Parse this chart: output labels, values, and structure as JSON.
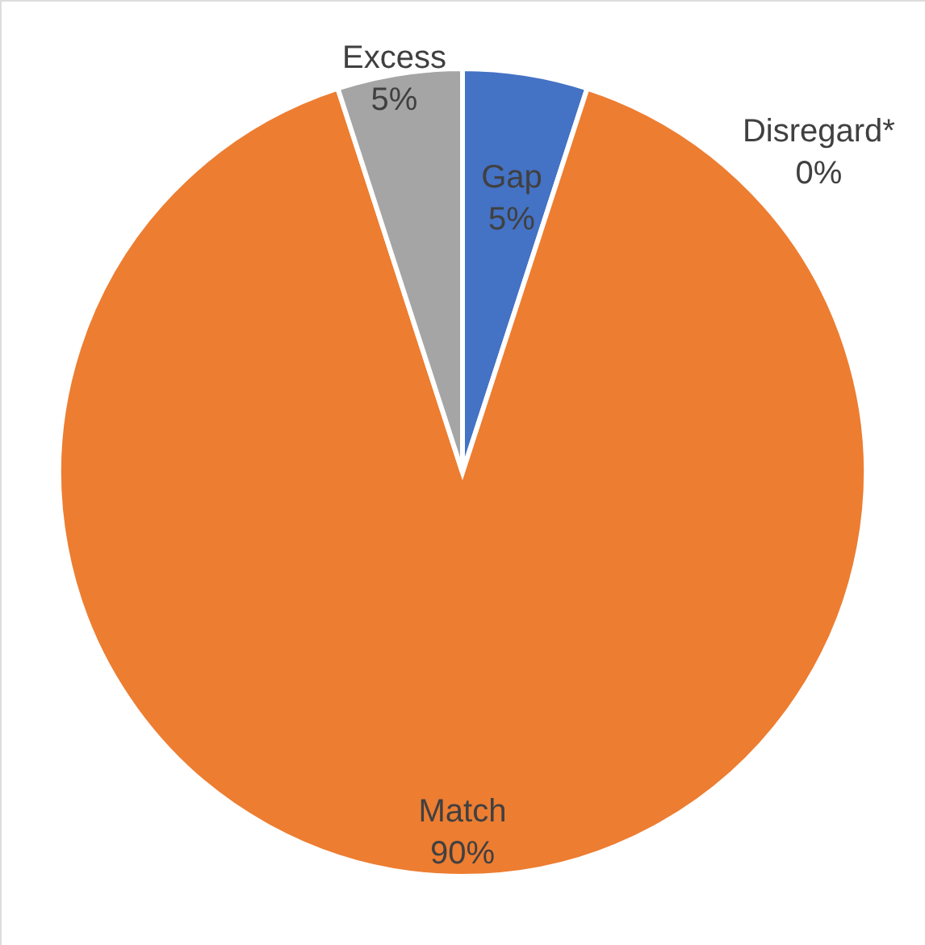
{
  "chart_data": {
    "type": "pie",
    "categories": [
      "Gap",
      "Disregard*",
      "Match",
      "Excess"
    ],
    "values": [
      5,
      0,
      90,
      5
    ],
    "value_labels": [
      "5%",
      "0%",
      "90%",
      "5%"
    ],
    "colors": [
      "#4472c4",
      "#ffc000",
      "#ed7d31",
      "#a5a5a5"
    ]
  }
}
